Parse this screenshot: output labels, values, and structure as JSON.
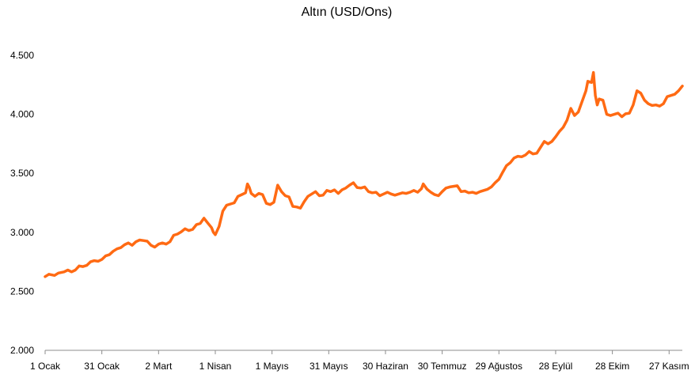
{
  "chart_data": {
    "type": "line",
    "title": "Altın (USD/Ons)",
    "xlabel": "",
    "ylabel": "",
    "ylim": [
      2000,
      4500
    ],
    "yticks": [
      {
        "value": 2000,
        "label": "2.000"
      },
      {
        "value": 2500,
        "label": "2.500"
      },
      {
        "value": 3000,
        "label": "3.000"
      },
      {
        "value": 3500,
        "label": "3.500"
      },
      {
        "value": 4000,
        "label": "4.000"
      },
      {
        "value": 4500,
        "label": "4.500"
      }
    ],
    "xlim": [
      1,
      338
    ],
    "xticks": [
      {
        "value": 1,
        "label": "1 Ocak"
      },
      {
        "value": 31,
        "label": "31 Ocak"
      },
      {
        "value": 61,
        "label": "2 Mart"
      },
      {
        "value": 91,
        "label": "1 Nisan"
      },
      {
        "value": 121,
        "label": "1 Mayıs"
      },
      {
        "value": 151,
        "label": "31 Mayıs"
      },
      {
        "value": 181,
        "label": "30 Haziran"
      },
      {
        "value": 211,
        "label": "30 Temmuz"
      },
      {
        "value": 241,
        "label": "29 Ağustos"
      },
      {
        "value": 271,
        "label": "28 Eylül"
      },
      {
        "value": 301,
        "label": "28 Ekim"
      },
      {
        "value": 331,
        "label": "27 Kasım"
      }
    ],
    "grid": false,
    "legend": "none",
    "series": [
      {
        "color": "#ff6a13",
        "points": [
          [
            1,
            2625
          ],
          [
            3,
            2645
          ],
          [
            6,
            2635
          ],
          [
            8,
            2655
          ],
          [
            11,
            2665
          ],
          [
            13,
            2680
          ],
          [
            15,
            2665
          ],
          [
            17,
            2680
          ],
          [
            19,
            2715
          ],
          [
            21,
            2710
          ],
          [
            23,
            2720
          ],
          [
            25,
            2750
          ],
          [
            27,
            2760
          ],
          [
            29,
            2755
          ],
          [
            31,
            2770
          ],
          [
            33,
            2800
          ],
          [
            35,
            2810
          ],
          [
            37,
            2840
          ],
          [
            39,
            2860
          ],
          [
            41,
            2870
          ],
          [
            43,
            2895
          ],
          [
            45,
            2910
          ],
          [
            47,
            2890
          ],
          [
            49,
            2920
          ],
          [
            51,
            2935
          ],
          [
            53,
            2930
          ],
          [
            55,
            2925
          ],
          [
            57,
            2890
          ],
          [
            59,
            2875
          ],
          [
            61,
            2900
          ],
          [
            63,
            2910
          ],
          [
            65,
            2900
          ],
          [
            67,
            2920
          ],
          [
            69,
            2975
          ],
          [
            71,
            2985
          ],
          [
            73,
            3005
          ],
          [
            75,
            3030
          ],
          [
            77,
            3015
          ],
          [
            79,
            3025
          ],
          [
            81,
            3065
          ],
          [
            83,
            3075
          ],
          [
            85,
            3120
          ],
          [
            87,
            3080
          ],
          [
            89,
            3040
          ],
          [
            90,
            3000
          ],
          [
            91,
            2980
          ],
          [
            93,
            3050
          ],
          [
            95,
            3180
          ],
          [
            97,
            3230
          ],
          [
            99,
            3240
          ],
          [
            101,
            3250
          ],
          [
            103,
            3305
          ],
          [
            105,
            3320
          ],
          [
            107,
            3335
          ],
          [
            108,
            3410
          ],
          [
            109,
            3380
          ],
          [
            110,
            3330
          ],
          [
            112,
            3305
          ],
          [
            114,
            3330
          ],
          [
            116,
            3320
          ],
          [
            118,
            3245
          ],
          [
            120,
            3235
          ],
          [
            122,
            3255
          ],
          [
            124,
            3400
          ],
          [
            126,
            3345
          ],
          [
            128,
            3310
          ],
          [
            130,
            3300
          ],
          [
            132,
            3220
          ],
          [
            134,
            3215
          ],
          [
            136,
            3205
          ],
          [
            138,
            3260
          ],
          [
            140,
            3305
          ],
          [
            142,
            3325
          ],
          [
            144,
            3345
          ],
          [
            146,
            3310
          ],
          [
            148,
            3315
          ],
          [
            150,
            3355
          ],
          [
            152,
            3345
          ],
          [
            154,
            3360
          ],
          [
            156,
            3330
          ],
          [
            158,
            3360
          ],
          [
            160,
            3375
          ],
          [
            162,
            3400
          ],
          [
            164,
            3420
          ],
          [
            166,
            3380
          ],
          [
            168,
            3375
          ],
          [
            170,
            3385
          ],
          [
            172,
            3345
          ],
          [
            174,
            3335
          ],
          [
            176,
            3340
          ],
          [
            178,
            3310
          ],
          [
            180,
            3325
          ],
          [
            182,
            3340
          ],
          [
            184,
            3325
          ],
          [
            186,
            3315
          ],
          [
            188,
            3325
          ],
          [
            190,
            3335
          ],
          [
            192,
            3330
          ],
          [
            194,
            3340
          ],
          [
            196,
            3355
          ],
          [
            198,
            3340
          ],
          [
            200,
            3370
          ],
          [
            201,
            3410
          ],
          [
            203,
            3365
          ],
          [
            205,
            3340
          ],
          [
            207,
            3320
          ],
          [
            209,
            3310
          ],
          [
            211,
            3345
          ],
          [
            213,
            3375
          ],
          [
            215,
            3385
          ],
          [
            217,
            3390
          ],
          [
            219,
            3395
          ],
          [
            221,
            3345
          ],
          [
            223,
            3350
          ],
          [
            225,
            3335
          ],
          [
            227,
            3340
          ],
          [
            229,
            3330
          ],
          [
            231,
            3345
          ],
          [
            233,
            3355
          ],
          [
            235,
            3365
          ],
          [
            237,
            3385
          ],
          [
            239,
            3420
          ],
          [
            241,
            3450
          ],
          [
            243,
            3510
          ],
          [
            245,
            3565
          ],
          [
            247,
            3590
          ],
          [
            249,
            3630
          ],
          [
            251,
            3645
          ],
          [
            253,
            3640
          ],
          [
            255,
            3655
          ],
          [
            257,
            3685
          ],
          [
            259,
            3665
          ],
          [
            261,
            3670
          ],
          [
            263,
            3720
          ],
          [
            265,
            3770
          ],
          [
            267,
            3750
          ],
          [
            269,
            3770
          ],
          [
            271,
            3810
          ],
          [
            273,
            3855
          ],
          [
            275,
            3890
          ],
          [
            277,
            3950
          ],
          [
            279,
            4050
          ],
          [
            281,
            3990
          ],
          [
            283,
            4020
          ],
          [
            285,
            4110
          ],
          [
            287,
            4200
          ],
          [
            288,
            4280
          ],
          [
            290,
            4270
          ],
          [
            291,
            4355
          ],
          [
            292,
            4160
          ],
          [
            293,
            4080
          ],
          [
            294,
            4130
          ],
          [
            296,
            4120
          ],
          [
            298,
            4000
          ],
          [
            300,
            3990
          ],
          [
            302,
            4000
          ],
          [
            304,
            4010
          ],
          [
            306,
            3980
          ],
          [
            308,
            4005
          ],
          [
            310,
            4010
          ],
          [
            312,
            4080
          ],
          [
            314,
            4200
          ],
          [
            316,
            4180
          ],
          [
            318,
            4120
          ],
          [
            320,
            4090
          ],
          [
            322,
            4075
          ],
          [
            324,
            4080
          ],
          [
            326,
            4070
          ],
          [
            328,
            4090
          ],
          [
            330,
            4150
          ],
          [
            332,
            4160
          ],
          [
            334,
            4170
          ],
          [
            336,
            4200
          ],
          [
            338,
            4240
          ]
        ]
      }
    ]
  }
}
